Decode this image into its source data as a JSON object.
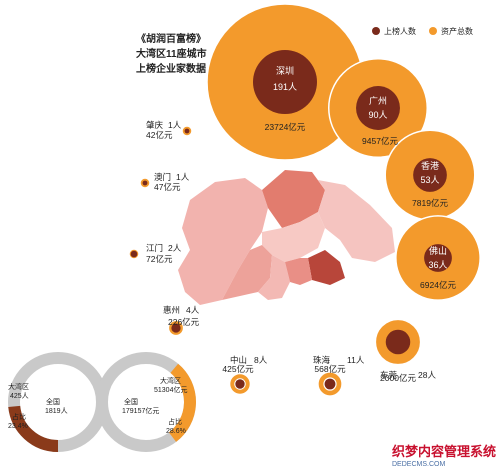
{
  "title_lines": [
    "《胡润百富榜》",
    "大湾区11座城市",
    "上榜企业家数据"
  ],
  "legend": [
    {
      "label": "上榜人数",
      "color": "#7a2a1b"
    },
    {
      "label": "资产总数",
      "color": "#f39a2c"
    }
  ],
  "watermark": {
    "text": "织梦内容管理系统",
    "subtext": "DEDECMS.COM"
  },
  "chart_data": {
    "type": "bubble",
    "unit_people": "人",
    "unit_assets": "亿元",
    "cities": [
      {
        "name": "深圳",
        "people": "191人",
        "assets": "23724亿元",
        "people_value": 191,
        "assets_value": 23724
      },
      {
        "name": "广州",
        "people": "90人",
        "assets": "9457亿元",
        "people_value": 90,
        "assets_value": 9457
      },
      {
        "name": "香港",
        "people": "53人",
        "assets": "7819亿元",
        "people_value": 53,
        "assets_value": 7819
      },
      {
        "name": "佛山",
        "people": "36人",
        "assets": "6924亿元",
        "people_value": 36,
        "assets_value": 6924
      },
      {
        "name": "东莞",
        "people": "28人",
        "assets": "2000亿元",
        "people_value": 28,
        "assets_value": 2000
      },
      {
        "name": "珠海",
        "people": "11人",
        "assets": "568亿元",
        "people_value": 11,
        "assets_value": 568
      },
      {
        "name": "中山",
        "people": "8人",
        "assets": "425亿元",
        "people_value": 8,
        "assets_value": 425
      },
      {
        "name": "惠州",
        "people": "4人",
        "assets": "226亿元",
        "people_value": 4,
        "assets_value": 226
      },
      {
        "name": "江门",
        "people": "2人",
        "assets": "72亿元",
        "people_value": 2,
        "assets_value": 72
      },
      {
        "name": "澳门",
        "people": "1人",
        "assets": "47亿元",
        "people_value": 1,
        "assets_value": 47
      },
      {
        "name": "肇庆",
        "people": "1人",
        "assets": "42亿元",
        "people_value": 1,
        "assets_value": 42
      }
    ],
    "rings": [
      {
        "center_label": "全国",
        "center_value": "1819人",
        "side_label": "大湾区",
        "side_value": "425人",
        "share_label": "占比",
        "share_value": "23.4%"
      },
      {
        "center_label": "全国",
        "center_value": "179157亿元",
        "side_label": "大湾区",
        "side_value": "51304亿元",
        "share_label": "占比",
        "share_value": "28.6%"
      }
    ]
  }
}
